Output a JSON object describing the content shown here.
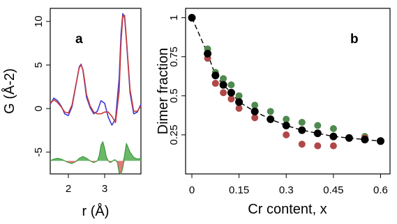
{
  "chart_data": [
    {
      "panel": "a",
      "type": "line",
      "xlabel": "r (Å)",
      "ylabel": "G (Å-2)",
      "xlim": [
        1.5,
        4.0
      ],
      "ylim": [
        -7.5,
        11.5
      ],
      "xticks": [
        2,
        3
      ],
      "yticks": [
        -5,
        0,
        5,
        10
      ],
      "grid": false,
      "series": [
        {
          "color": "#3a3ad8",
          "x": [
            1.5,
            1.6,
            1.7,
            1.8,
            1.9,
            2.0,
            2.1,
            2.2,
            2.3,
            2.35,
            2.4,
            2.45,
            2.5,
            2.6,
            2.7,
            2.8,
            2.9,
            3.0,
            3.1,
            3.2,
            3.3,
            3.4,
            3.45,
            3.5,
            3.55,
            3.6,
            3.7,
            3.8,
            3.9,
            4.0
          ],
          "y": [
            0.5,
            1.2,
            0.9,
            0.3,
            -0.6,
            -0.8,
            0.2,
            2.5,
            4.8,
            5.1,
            4.4,
            2.9,
            1.3,
            0.1,
            -0.6,
            -0.3,
            0.9,
            0.6,
            -1.0,
            -1.9,
            -1.2,
            3.5,
            8.5,
            10.9,
            10.4,
            7.8,
            1.8,
            -0.6,
            -0.4,
            0.5
          ]
        },
        {
          "color": "#c83a3a",
          "x": [
            1.5,
            1.6,
            1.7,
            1.8,
            1.9,
            2.0,
            2.1,
            2.2,
            2.3,
            2.35,
            2.4,
            2.45,
            2.5,
            2.6,
            2.7,
            2.8,
            2.9,
            3.0,
            3.1,
            3.2,
            3.3,
            3.4,
            3.45,
            3.5,
            3.55,
            3.6,
            3.7,
            3.8,
            3.9,
            4.0
          ],
          "y": [
            0.6,
            1.0,
            0.7,
            0.2,
            -0.4,
            -0.5,
            0.4,
            2.6,
            4.7,
            5.0,
            4.5,
            3.2,
            1.6,
            0.3,
            -0.4,
            -0.6,
            -0.6,
            -0.4,
            -0.4,
            -0.9,
            -1.6,
            2.0,
            7.5,
            10.6,
            10.7,
            8.0,
            2.2,
            -0.3,
            -0.3,
            0.3
          ]
        },
        {
          "color": "#3a9a3a",
          "fill_color": "#6bb86b",
          "negative_fill_color": "#e3797a",
          "baseline": -6.0,
          "x": [
            1.5,
            1.6,
            1.7,
            1.8,
            1.9,
            2.0,
            2.1,
            2.2,
            2.3,
            2.4,
            2.5,
            2.6,
            2.7,
            2.8,
            2.85,
            2.9,
            2.95,
            3.0,
            3.05,
            3.1,
            3.15,
            3.2,
            3.25,
            3.3,
            3.35,
            3.4,
            3.45,
            3.5,
            3.55,
            3.6,
            3.7,
            3.8,
            3.9,
            4.0
          ],
          "y": [
            -6.0,
            -5.8,
            -5.7,
            -5.8,
            -6.0,
            -6.2,
            -6.3,
            -6.1,
            -5.7,
            -5.5,
            -5.7,
            -6.0,
            -6.2,
            -6.0,
            -5.4,
            -4.2,
            -3.8,
            -4.6,
            -5.6,
            -6.0,
            -6.2,
            -6.1,
            -5.9,
            -5.9,
            -6.2,
            -7.4,
            -7.5,
            -6.8,
            -5.3,
            -4.0,
            -5.0,
            -5.6,
            -5.8,
            -5.7
          ]
        }
      ]
    },
    {
      "panel": "b",
      "type": "scatter",
      "xlabel": "Cr content, x",
      "ylabel": "Dimer fraction",
      "xlim": [
        -0.02,
        0.63
      ],
      "ylim": [
        0.0,
        1.06
      ],
      "xticks": [
        "0",
        "0.15",
        "0.3",
        "0.45",
        "0.6"
      ],
      "yticks": [
        "0.25",
        "0.5",
        "0.75",
        "1"
      ],
      "grid": false,
      "series": [
        {
          "color": "#4f8a4f",
          "x": [
            0.05,
            0.075,
            0.1,
            0.125,
            0.15,
            0.2,
            0.25,
            0.3,
            0.35,
            0.4,
            0.45,
            0.55
          ],
          "y": [
            0.8,
            0.65,
            0.61,
            0.57,
            0.5,
            0.44,
            0.4,
            0.35,
            0.33,
            0.31,
            0.29,
            0.24
          ]
        },
        {
          "color": "#b04848",
          "x": [
            0.05,
            0.075,
            0.1,
            0.125,
            0.15,
            0.2,
            0.25,
            0.3,
            0.35,
            0.4,
            0.45,
            0.55
          ],
          "y": [
            0.74,
            0.58,
            0.52,
            0.48,
            0.42,
            0.36,
            0.35,
            0.25,
            0.19,
            0.18,
            0.18,
            0.23
          ]
        },
        {
          "color": "#000000",
          "dashed_line": true,
          "x": [
            0.0,
            0.05,
            0.075,
            0.1,
            0.125,
            0.15,
            0.2,
            0.25,
            0.3,
            0.35,
            0.4,
            0.45,
            0.5,
            0.55,
            0.6
          ],
          "y": [
            1.0,
            0.77,
            0.63,
            0.57,
            0.52,
            0.46,
            0.4,
            0.35,
            0.31,
            0.28,
            0.26,
            0.24,
            0.23,
            0.22,
            0.21
          ]
        }
      ]
    }
  ]
}
